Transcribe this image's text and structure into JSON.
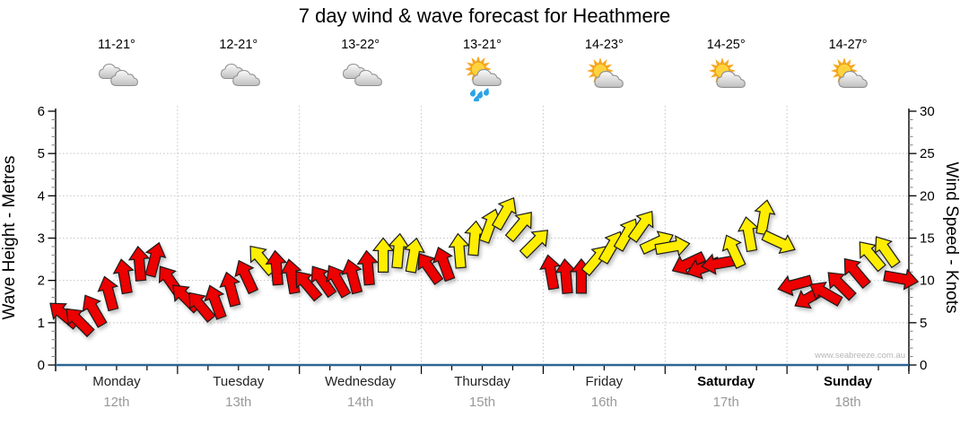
{
  "title": "7 day wind & wave forecast for Heathmere",
  "watermark": "www.seabreeze.com.au",
  "forecast_header": {
    "days": [
      {
        "temp": "11-21°",
        "icon": "cloudy"
      },
      {
        "temp": "12-21°",
        "icon": "cloudy"
      },
      {
        "temp": "13-22°",
        "icon": "cloudy"
      },
      {
        "temp": "13-21°",
        "icon": "sun-showers"
      },
      {
        "temp": "14-23°",
        "icon": "partly-cloudy"
      },
      {
        "temp": "14-25°",
        "icon": "partly-cloudy"
      },
      {
        "temp": "14-27°",
        "icon": "partly-cloudy"
      }
    ]
  },
  "chart_data": {
    "type": "wind-arrows",
    "left_axis": {
      "label": "Wave Height - Metres",
      "min": 0,
      "max": 6,
      "tick_labels": [
        "0",
        "1",
        "2",
        "3",
        "4",
        "5",
        "6"
      ]
    },
    "right_axis": {
      "label": "Wind Speed - Knots",
      "min": 0,
      "max": 30,
      "tick_labels": [
        "0",
        "5",
        "10",
        "15",
        "20",
        "25",
        "30"
      ]
    },
    "x_axis": {
      "days": [
        {
          "name": "Monday",
          "date": "12th",
          "bold": false
        },
        {
          "name": "Tuesday",
          "date": "13th",
          "bold": false
        },
        {
          "name": "Wednesday",
          "date": "14th",
          "bold": false
        },
        {
          "name": "Thursday",
          "date": "15th",
          "bold": false
        },
        {
          "name": "Friday",
          "date": "16th",
          "bold": false
        },
        {
          "name": "Saturday",
          "date": "17th",
          "bold": true
        },
        {
          "name": "Sunday",
          "date": "18th",
          "bold": true
        }
      ],
      "subticks_per_day": 4
    },
    "grid": true,
    "colors": {
      "light_wind_red": "#ec0000",
      "moderate_wind_yellow": "#ffee00",
      "grid": "#c4c4c4",
      "baseline_blue": "#2d6592"
    },
    "arrow_dir_convention": "degrees clockwise, 0 = pointing up (blowing toward top of chart)",
    "arrows": [
      {
        "knots": 6.0,
        "dir_deg": -50,
        "color": "red"
      },
      {
        "knots": 5.2,
        "dir_deg": -45,
        "color": "red"
      },
      {
        "knots": 6.5,
        "dir_deg": -30,
        "color": "red"
      },
      {
        "knots": 8.5,
        "dir_deg": -15,
        "color": "red"
      },
      {
        "knots": 10.5,
        "dir_deg": -10,
        "color": "red"
      },
      {
        "knots": 12.0,
        "dir_deg": -5,
        "color": "red"
      },
      {
        "knots": 12.5,
        "dir_deg": 15,
        "color": "red"
      },
      {
        "knots": 10.0,
        "dir_deg": -35,
        "color": "red"
      },
      {
        "knots": 8.0,
        "dir_deg": -45,
        "color": "red"
      },
      {
        "knots": 7.0,
        "dir_deg": -40,
        "color": "red"
      },
      {
        "knots": 7.5,
        "dir_deg": -20,
        "color": "red"
      },
      {
        "knots": 9.0,
        "dir_deg": -15,
        "color": "red"
      },
      {
        "knots": 10.5,
        "dir_deg": -25,
        "color": "red"
      },
      {
        "knots": 12.5,
        "dir_deg": -40,
        "color": "yellow"
      },
      {
        "knots": 11.5,
        "dir_deg": -5,
        "color": "red"
      },
      {
        "knots": 10.5,
        "dir_deg": -10,
        "color": "red"
      },
      {
        "knots": 9.5,
        "dir_deg": -40,
        "color": "red"
      },
      {
        "knots": 10.0,
        "dir_deg": -35,
        "color": "red"
      },
      {
        "knots": 10.0,
        "dir_deg": -30,
        "color": "red"
      },
      {
        "knots": 10.5,
        "dir_deg": -15,
        "color": "red"
      },
      {
        "knots": 11.5,
        "dir_deg": -5,
        "color": "red"
      },
      {
        "knots": 13.0,
        "dir_deg": 0,
        "color": "yellow"
      },
      {
        "knots": 13.5,
        "dir_deg": 5,
        "color": "yellow"
      },
      {
        "knots": 13.0,
        "dir_deg": 10,
        "color": "yellow"
      },
      {
        "knots": 11.5,
        "dir_deg": -35,
        "color": "red"
      },
      {
        "knots": 12.0,
        "dir_deg": -20,
        "color": "red"
      },
      {
        "knots": 13.5,
        "dir_deg": -5,
        "color": "yellow"
      },
      {
        "knots": 15.0,
        "dir_deg": 5,
        "color": "yellow"
      },
      {
        "knots": 16.5,
        "dir_deg": 20,
        "color": "yellow"
      },
      {
        "knots": 18.0,
        "dir_deg": 30,
        "color": "yellow"
      },
      {
        "knots": 16.5,
        "dir_deg": 40,
        "color": "yellow"
      },
      {
        "knots": 14.5,
        "dir_deg": 45,
        "color": "yellow"
      },
      {
        "knots": 11.0,
        "dir_deg": -10,
        "color": "red"
      },
      {
        "knots": 10.5,
        "dir_deg": -5,
        "color": "red"
      },
      {
        "knots": 10.5,
        "dir_deg": 0,
        "color": "red"
      },
      {
        "knots": 12.5,
        "dir_deg": 40,
        "color": "yellow"
      },
      {
        "knots": 14.0,
        "dir_deg": 30,
        "color": "yellow"
      },
      {
        "knots": 15.5,
        "dir_deg": 30,
        "color": "yellow"
      },
      {
        "knots": 16.5,
        "dir_deg": 35,
        "color": "yellow"
      },
      {
        "knots": 14.5,
        "dir_deg": 65,
        "color": "yellow"
      },
      {
        "knots": 14.0,
        "dir_deg": 80,
        "color": "yellow"
      },
      {
        "knots": 12.0,
        "dir_deg": -115,
        "color": "red"
      },
      {
        "knots": 11.5,
        "dir_deg": -110,
        "color": "red"
      },
      {
        "knots": 12.0,
        "dir_deg": -100,
        "color": "red"
      },
      {
        "knots": 13.5,
        "dir_deg": -25,
        "color": "yellow"
      },
      {
        "knots": 15.5,
        "dir_deg": -10,
        "color": "yellow"
      },
      {
        "knots": 17.5,
        "dir_deg": 10,
        "color": "yellow"
      },
      {
        "knots": 14.5,
        "dir_deg": 115,
        "color": "yellow"
      },
      {
        "knots": 9.5,
        "dir_deg": -105,
        "color": "red"
      },
      {
        "knots": 8.0,
        "dir_deg": -120,
        "color": "red"
      },
      {
        "knots": 8.5,
        "dir_deg": -60,
        "color": "red"
      },
      {
        "knots": 9.5,
        "dir_deg": -45,
        "color": "red"
      },
      {
        "knots": 11.0,
        "dir_deg": -40,
        "color": "red"
      },
      {
        "knots": 13.0,
        "dir_deg": -40,
        "color": "yellow"
      },
      {
        "knots": 13.5,
        "dir_deg": -35,
        "color": "yellow"
      },
      {
        "knots": 10.2,
        "dir_deg": 100,
        "color": "red"
      }
    ]
  }
}
